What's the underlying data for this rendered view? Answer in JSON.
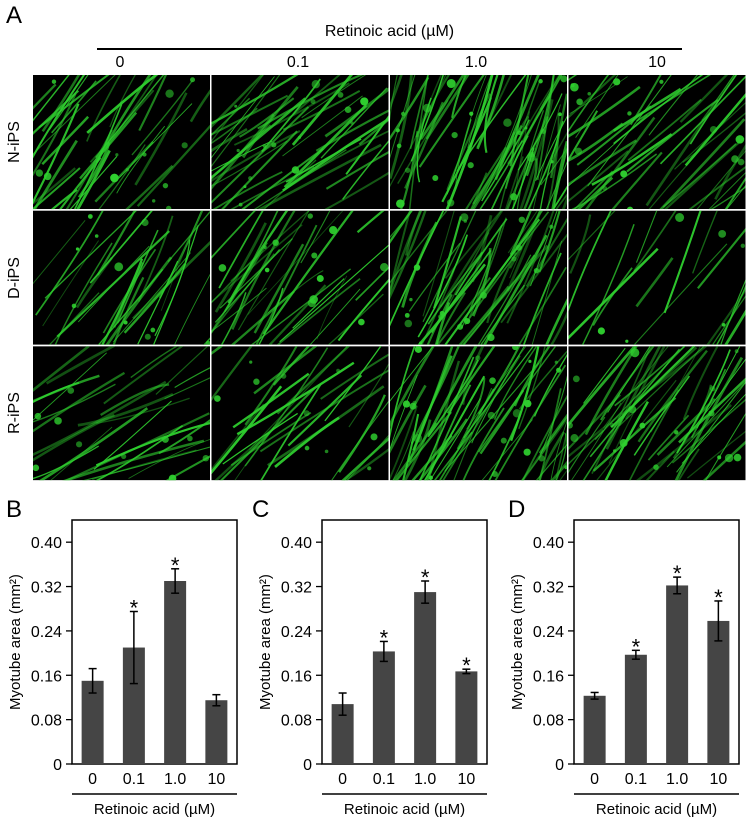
{
  "panel_letters": {
    "a": "A",
    "b": "B",
    "c": "C",
    "d": "D"
  },
  "micrographs": {
    "title": "Retinoic acid (µM)",
    "columns": [
      "0",
      "0.1",
      "1.0",
      "10"
    ],
    "rows": [
      "N-iPS",
      "D-iPS",
      "R-iPS"
    ],
    "colors": {
      "background": "#000000",
      "fiber": "#2fd02f",
      "grid": "#ffffff"
    }
  },
  "chart_data": [
    {
      "type": "bar",
      "panel": "B",
      "categories": [
        "0",
        "0.1",
        "1.0",
        "10"
      ],
      "values": [
        0.15,
        0.21,
        0.33,
        0.115
      ],
      "errors": [
        0.022,
        0.065,
        0.022,
        0.01
      ],
      "significant": [
        false,
        true,
        true,
        false
      ],
      "ylabel": "Myotube area (mm²)",
      "xlabel": "Retinoic acid (µM)",
      "ylim": [
        0,
        0.44
      ],
      "yticks": [
        "0",
        "0.08",
        "0.16",
        "0.24",
        "0.32",
        "0.40"
      ],
      "color": "#454545"
    },
    {
      "type": "bar",
      "panel": "C",
      "categories": [
        "0",
        "0.1",
        "1.0",
        "10"
      ],
      "values": [
        0.108,
        0.203,
        0.31,
        0.167
      ],
      "errors": [
        0.02,
        0.018,
        0.02,
        0.004
      ],
      "significant": [
        false,
        true,
        true,
        true
      ],
      "ylabel": "Myotube area (mm²)",
      "xlabel": "Retinoic acid (µM)",
      "ylim": [
        0,
        0.44
      ],
      "yticks": [
        "0",
        "0.08",
        "0.16",
        "0.24",
        "0.32",
        "0.40"
      ],
      "color": "#454545"
    },
    {
      "type": "bar",
      "panel": "D",
      "categories": [
        "0",
        "0.1",
        "1.0",
        "10"
      ],
      "values": [
        0.123,
        0.197,
        0.322,
        0.258
      ],
      "errors": [
        0.006,
        0.008,
        0.015,
        0.036
      ],
      "significant": [
        false,
        true,
        true,
        true
      ],
      "ylabel": "Myotube area (mm²)",
      "xlabel": "Retinoic acid (µM)",
      "ylim": [
        0,
        0.44
      ],
      "yticks": [
        "0",
        "0.08",
        "0.16",
        "0.24",
        "0.32",
        "0.40"
      ],
      "color": "#454545"
    }
  ]
}
